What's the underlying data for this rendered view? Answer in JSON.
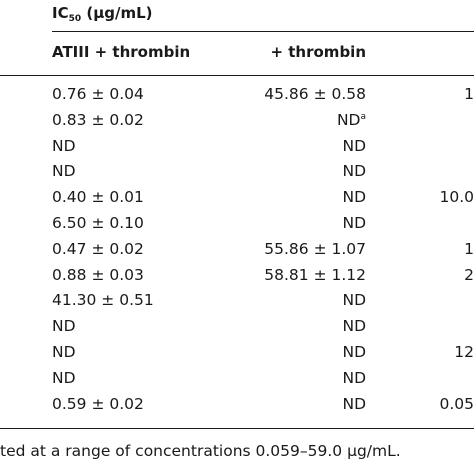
{
  "header": {
    "title_prefix": "IC",
    "title_subscript": "50",
    "title_suffix": " (µg/mL)"
  },
  "columns": {
    "atiii_thrombin": "ATIII + thrombin",
    "thrombin": "+ thrombin"
  },
  "rows": [
    {
      "atiii": "0.76 ± 0.04",
      "thrombin": "45.86 ± 0.58",
      "thrombin_sup": "",
      "partial": "1"
    },
    {
      "atiii": "0.83 ± 0.02",
      "thrombin": "ND",
      "thrombin_sup": "a",
      "partial": ""
    },
    {
      "atiii": "ND",
      "thrombin": "ND",
      "thrombin_sup": "",
      "partial": ""
    },
    {
      "atiii": "ND",
      "thrombin": "ND",
      "thrombin_sup": "",
      "partial": ""
    },
    {
      "atiii": "0.40 ± 0.01",
      "thrombin": "ND",
      "thrombin_sup": "",
      "partial": "10.0"
    },
    {
      "atiii": "6.50 ± 0.10",
      "thrombin": "ND",
      "thrombin_sup": "",
      "partial": ""
    },
    {
      "atiii": "0.47 ± 0.02",
      "thrombin": "55.86 ± 1.07",
      "thrombin_sup": "",
      "partial": "1"
    },
    {
      "atiii": "0.88 ± 0.03",
      "thrombin": "58.81 ± 1.12",
      "thrombin_sup": "",
      "partial": "2"
    },
    {
      "atiii": "41.30 ± 0.51",
      "thrombin": "ND",
      "thrombin_sup": "",
      "partial": ""
    },
    {
      "atiii": "ND",
      "thrombin": "ND",
      "thrombin_sup": "",
      "partial": ""
    },
    {
      "atiii": "ND",
      "thrombin": "ND",
      "thrombin_sup": "",
      "partial": "12"
    },
    {
      "atiii": "ND",
      "thrombin": "ND",
      "thrombin_sup": "",
      "partial": ""
    },
    {
      "atiii": "0.59 ± 0.02",
      "thrombin": "ND",
      "thrombin_sup": "",
      "partial": "0.05"
    }
  ],
  "footnote": "ted at a range of concentrations 0.059–59.0 µg/mL."
}
